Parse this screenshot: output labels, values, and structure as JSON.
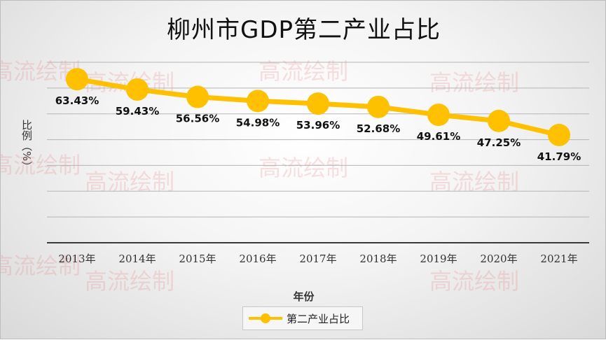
{
  "chart_data": {
    "type": "line",
    "title": "柳州市GDP第二产业占比",
    "xlabel": "年份",
    "ylabel": "比例（%）",
    "categories": [
      "2013年",
      "2014年",
      "2015年",
      "2016年",
      "2017年",
      "2018年",
      "2019年",
      "2020年",
      "2021年"
    ],
    "series": [
      {
        "name": "第二产业占比",
        "values": [
          63.43,
          59.43,
          56.56,
          54.98,
          53.96,
          52.68,
          49.61,
          47.25,
          41.79
        ],
        "labels": [
          "63.43%",
          "59.43%",
          "56.56%",
          "54.98%",
          "53.96%",
          "52.68%",
          "49.61%",
          "47.25%",
          "41.79%"
        ]
      }
    ],
    "ylim": [
      0,
      70
    ],
    "grid": true,
    "legend_position": "bottom",
    "color": "#FFC000",
    "watermark": "高流绘制"
  }
}
